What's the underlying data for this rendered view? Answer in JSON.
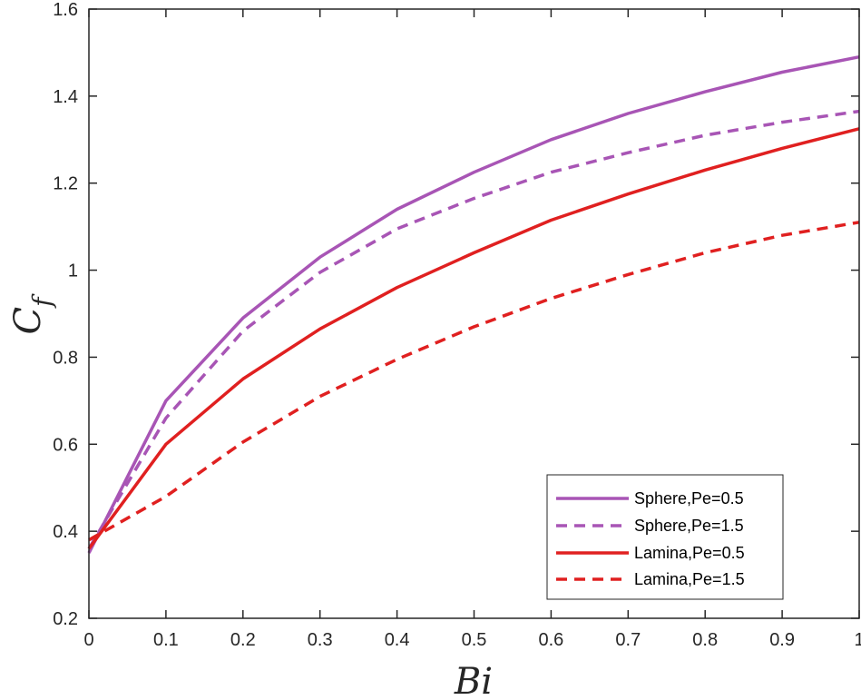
{
  "chart_data": {
    "type": "line",
    "xlabel": "Bi",
    "ylabel_main": "C",
    "ylabel_sub": "f",
    "xlim": [
      0,
      1
    ],
    "ylim": [
      0.2,
      1.6
    ],
    "x_ticks": [
      0,
      0.1,
      0.2,
      0.3,
      0.4,
      0.5,
      0.6,
      0.7,
      0.8,
      0.9,
      1
    ],
    "x_tick_labels": [
      "0",
      "0.1",
      "0.2",
      "0.3",
      "0.4",
      "0.5",
      "0.6",
      "0.7",
      "0.8",
      "0.9",
      "1"
    ],
    "y_ticks": [
      0.2,
      0.4,
      0.6,
      0.8,
      1.0,
      1.2,
      1.4,
      1.6
    ],
    "y_tick_labels": [
      "0.2",
      "0.4",
      "0.6",
      "0.8",
      "1",
      "1.2",
      "1.4",
      "1.6"
    ],
    "grid": false,
    "legend_position": "bottom-right",
    "x": [
      0,
      0.1,
      0.2,
      0.3,
      0.4,
      0.5,
      0.6,
      0.7,
      0.8,
      0.9,
      1.0
    ],
    "series": [
      {
        "name": "Sphere,Pe=0.5",
        "color": "#A855B5",
        "dash": "solid",
        "values": [
          0.35,
          0.7,
          0.89,
          1.03,
          1.14,
          1.225,
          1.3,
          1.36,
          1.41,
          1.455,
          1.49
        ]
      },
      {
        "name": "Sphere,Pe=1.5",
        "color": "#A855B5",
        "dash": "dashed",
        "values": [
          0.36,
          0.66,
          0.86,
          0.995,
          1.095,
          1.165,
          1.225,
          1.27,
          1.31,
          1.34,
          1.365
        ]
      },
      {
        "name": "Lamina,Pe=0.5",
        "color": "#E02020",
        "dash": "solid",
        "values": [
          0.36,
          0.6,
          0.75,
          0.865,
          0.96,
          1.04,
          1.115,
          1.175,
          1.23,
          1.28,
          1.325
        ]
      },
      {
        "name": "Lamina,Pe=1.5",
        "color": "#E02020",
        "dash": "dashed",
        "values": [
          0.38,
          0.48,
          0.605,
          0.71,
          0.795,
          0.87,
          0.935,
          0.99,
          1.04,
          1.08,
          1.11
        ]
      }
    ]
  }
}
